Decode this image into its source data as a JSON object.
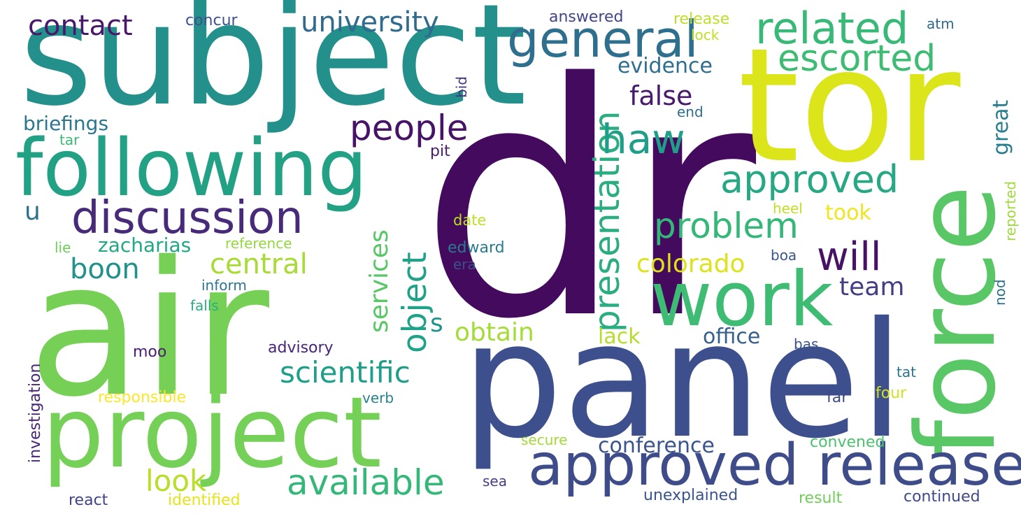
{
  "words": [
    {
      "text": "dr",
      "color": "#440a5e"
    },
    {
      "text": "subject",
      "color": "#24908c"
    },
    {
      "text": "tor",
      "color": "#dce41a"
    },
    {
      "text": "air",
      "color": "#76d055"
    },
    {
      "text": "panel",
      "color": "#3d4f8c"
    },
    {
      "text": "following",
      "color": "#22a185"
    },
    {
      "text": "project",
      "color": "#74d056"
    },
    {
      "text": "force",
      "color": "#59c765"
    },
    {
      "text": "work",
      "color": "#3fbc73"
    },
    {
      "text": "approved release",
      "color": "#3e4c8a"
    },
    {
      "text": "general",
      "color": "#2e6f8e"
    },
    {
      "text": "related",
      "color": "#38b977"
    },
    {
      "text": "escorted",
      "color": "#3fbc73"
    },
    {
      "text": "discussion",
      "color": "#472a7a"
    },
    {
      "text": "presentation",
      "color": "#2aae80"
    },
    {
      "text": "approved",
      "color": "#27a884"
    },
    {
      "text": "problem",
      "color": "#35b779"
    },
    {
      "text": "people",
      "color": "#471366"
    },
    {
      "text": "haw",
      "color": "#1f9e89"
    },
    {
      "text": "object",
      "color": "#1fa287"
    },
    {
      "text": "will",
      "color": "#471164"
    },
    {
      "text": "university",
      "color": "#306a8e"
    },
    {
      "text": "contact",
      "color": "#48186a"
    },
    {
      "text": "available",
      "color": "#35b779"
    },
    {
      "text": "scientific",
      "color": "#1f9e89"
    },
    {
      "text": "central",
      "color": "#a8db34"
    },
    {
      "text": "boon",
      "color": "#21918c"
    },
    {
      "text": "services",
      "color": "#58c765"
    },
    {
      "text": "colorado",
      "color": "#dde318"
    },
    {
      "text": "team",
      "color": "#433e85"
    },
    {
      "text": "false",
      "color": "#481a6c"
    },
    {
      "text": "evidence",
      "color": "#2e6e8e"
    },
    {
      "text": "great",
      "color": "#287d8e"
    },
    {
      "text": "obtain",
      "color": "#a5db36"
    },
    {
      "text": "look",
      "color": "#b8de29"
    },
    {
      "text": "zacharias",
      "color": "#22a785"
    },
    {
      "text": "briefings",
      "color": "#2a778e"
    },
    {
      "text": "office",
      "color": "#355f8d"
    },
    {
      "text": "conference",
      "color": "#3a548c"
    },
    {
      "text": "lack",
      "color": "#b5de2b"
    },
    {
      "text": "took",
      "color": "#f1e51d"
    },
    {
      "text": "s",
      "color": "#20928c"
    },
    {
      "text": "u",
      "color": "#2c718e"
    },
    {
      "text": "investigation",
      "color": "#482576"
    },
    {
      "text": "concur",
      "color": "#3b528b"
    },
    {
      "text": "answered",
      "color": "#414487"
    },
    {
      "text": "release",
      "color": "#bddf26"
    },
    {
      "text": "lock",
      "color": "#c2df23"
    },
    {
      "text": "atm",
      "color": "#31688e"
    },
    {
      "text": "end",
      "color": "#2e6e8e"
    },
    {
      "text": "bid",
      "color": "#46327e"
    },
    {
      "text": "pit",
      "color": "#481c6e"
    },
    {
      "text": "tar",
      "color": "#3bbb75"
    },
    {
      "text": "date",
      "color": "#bddf26"
    },
    {
      "text": "edward",
      "color": "#297b8e"
    },
    {
      "text": "era",
      "color": "#3b528b"
    },
    {
      "text": "heel",
      "color": "#c2df23"
    },
    {
      "text": "boa",
      "color": "#39568c"
    },
    {
      "text": "reported",
      "color": "#9fda3a"
    },
    {
      "text": "nod",
      "color": "#2c728e"
    },
    {
      "text": "lie",
      "color": "#6ccd5a"
    },
    {
      "text": "reference",
      "color": "#93d741"
    },
    {
      "text": "inform",
      "color": "#2b758e"
    },
    {
      "text": "falls",
      "color": "#29af7f"
    },
    {
      "text": "moo",
      "color": "#481f70"
    },
    {
      "text": "advisory",
      "color": "#482677"
    },
    {
      "text": "bas",
      "color": "#3b528b"
    },
    {
      "text": "tat",
      "color": "#2c728e"
    },
    {
      "text": "responsible",
      "color": "#fde725"
    },
    {
      "text": "verb",
      "color": "#26828e"
    },
    {
      "text": "far",
      "color": "#3e4989"
    },
    {
      "text": "four",
      "color": "#d2e21b"
    },
    {
      "text": "secure",
      "color": "#a2da37"
    },
    {
      "text": "convened",
      "color": "#4ac16d"
    },
    {
      "text": "sea",
      "color": "#433e85"
    },
    {
      "text": "react",
      "color": "#414487"
    },
    {
      "text": "identified",
      "color": "#e5e419"
    },
    {
      "text": "unexplained",
      "color": "#3a548c"
    },
    {
      "text": "result",
      "color": "#6ece58"
    },
    {
      "text": "continued",
      "color": "#3e4a89"
    }
  ]
}
